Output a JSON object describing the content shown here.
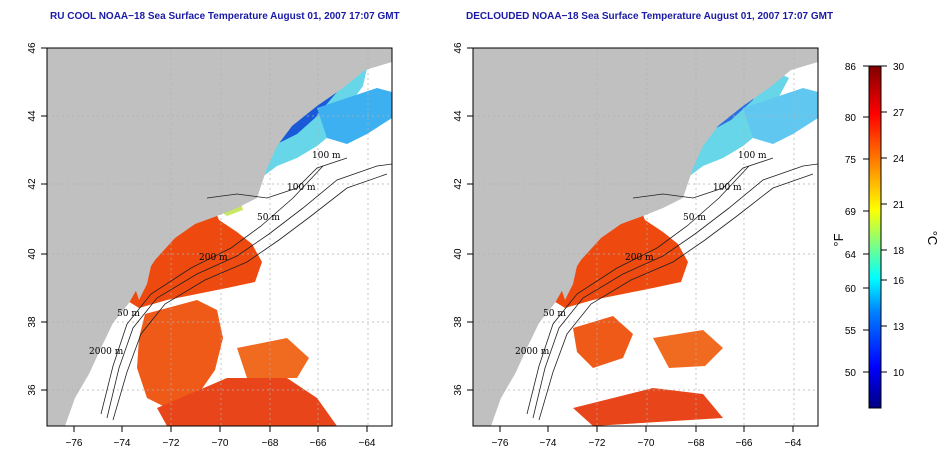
{
  "panels": [
    {
      "title": "RU COOL NOAA−18 Sea Surface Temperature August 01, 2007 17:07 GMT",
      "contour_labels": [
        "100 m",
        "100 m",
        "50 m",
        "200 m",
        "50 m",
        "2000 m"
      ]
    },
    {
      "title": "DECLOUDED NOAA−18 Sea Surface Temperature August 01, 2007 17:07 GMT",
      "contour_labels": [
        "100 m",
        "100 m",
        "50 m",
        "200 m",
        "50 m",
        "2000 m"
      ]
    }
  ],
  "axes": {
    "lon_ticks": [
      "−76",
      "−74",
      "−72",
      "−70",
      "−68",
      "−66",
      "−64"
    ],
    "lat_ticks": [
      "36",
      "38",
      "40",
      "42",
      "44",
      "46"
    ]
  },
  "colorbar": {
    "f_label": "°F",
    "c_label": "°C",
    "f_ticks": [
      "86",
      "80",
      "75",
      "69",
      "64",
      "60",
      "55",
      "50"
    ],
    "c_ticks": [
      "30",
      "27",
      "24",
      "21",
      "18",
      "16",
      "13",
      "10"
    ],
    "colors": [
      "#000080",
      "#0000ff",
      "#0080ff",
      "#00ffff",
      "#80ff80",
      "#ffff00",
      "#ff8000",
      "#ff0000",
      "#800000"
    ]
  },
  "colors": {
    "land": "#c0c0c0",
    "warm_water": "#ee4a10",
    "cool_water": "#1a5ad8",
    "title": "#1a1aa6"
  }
}
